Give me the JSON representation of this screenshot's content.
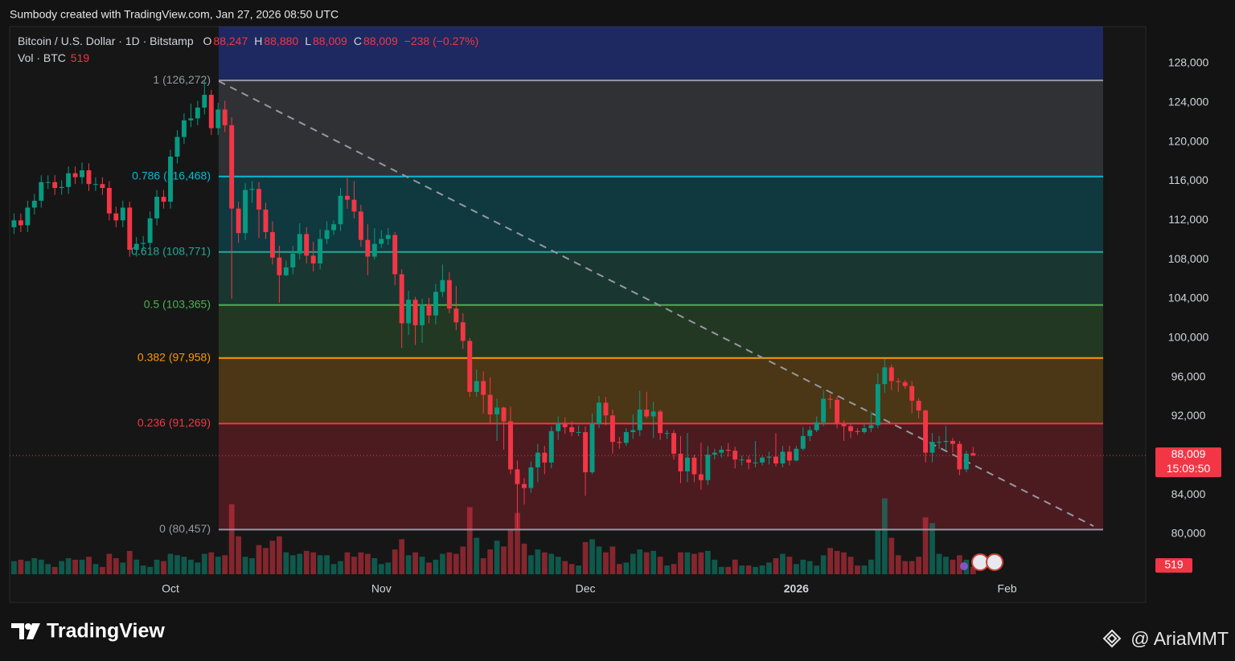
{
  "header": {
    "caption": "Sumbody created with TradingView.com, Jan 27, 2026 08:50 UTC"
  },
  "footer": {
    "brand": "TradingView",
    "author": "@ AriaMMT"
  },
  "chart_data": {
    "type": "candlestick",
    "title": "Bitcoin / U.S. Dollar · 1D · Bitstamp",
    "ohlc_legend": [
      {
        "key": "O",
        "value": "88,247"
      },
      {
        "key": "H",
        "value": "88,880"
      },
      {
        "key": "L",
        "value": "88,009"
      },
      {
        "key": "C",
        "value": "88,009"
      }
    ],
    "change": "−238 (−0.27%)",
    "volume_title": "Vol · BTC",
    "up_color": "#089981",
    "down_color": "#f23645",
    "ylim": [
      75900,
      131770
    ],
    "yticks": [
      {
        "value": 80000,
        "label": "80,000"
      },
      {
        "value": 84000,
        "label": "84,000"
      },
      {
        "value": 88000,
        "label": "88,000"
      },
      {
        "value": 92000,
        "label": "92,000"
      },
      {
        "value": 96000,
        "label": "96,000"
      },
      {
        "value": 100000,
        "label": "100,000"
      },
      {
        "value": 104000,
        "label": "104,000"
      },
      {
        "value": 108000,
        "label": "108,000"
      },
      {
        "value": 112000,
        "label": "112,000"
      },
      {
        "value": 116000,
        "label": "116,000"
      },
      {
        "value": 120000,
        "label": "120,000"
      },
      {
        "value": 124000,
        "label": "124,000"
      },
      {
        "value": 128000,
        "label": "128,000"
      }
    ],
    "volume_ylim": [
      0,
      5500
    ],
    "last_price": {
      "value": 88009,
      "label": "88,009"
    },
    "countdown": "15:09:50",
    "fib_levels": [
      {
        "value": 126272,
        "label": "1 (126,272)",
        "color": "#9598a1",
        "fill": "rgba(120,123,134,0.28)"
      },
      {
        "value": 116468,
        "label": "0.786 (116,468)",
        "color": "#00bcd4",
        "fill": "rgba(0,150,170,0.28)"
      },
      {
        "value": 108771,
        "label": "0.618 (108,771)",
        "color": "#26a69a",
        "fill": "rgba(38,140,120,0.28)"
      },
      {
        "value": 103365,
        "label": "0.5 (103,365)",
        "color": "#4caf50",
        "fill": "rgba(76,160,70,0.25)"
      },
      {
        "value": 97958,
        "label": "0.382 (97,958)",
        "color": "#ff9800",
        "fill": "rgba(200,130,20,0.3)"
      },
      {
        "value": 91269,
        "label": "0.236 (91,269)",
        "color": "#f23645",
        "fill": "rgba(200,40,55,0.3)"
      },
      {
        "value": 80457,
        "label": "0 (80,457)",
        "color": "#9598a1"
      }
    ],
    "categories": [
      null,
      null,
      null,
      null,
      null,
      null,
      null,
      null,
      null,
      null,
      null,
      null,
      null,
      null,
      null,
      null,
      null,
      null,
      null,
      null,
      null,
      null,
      null,
      "Oct",
      null,
      null,
      null,
      null,
      null,
      null,
      null,
      null,
      null,
      null,
      null,
      null,
      null,
      null,
      null,
      null,
      null,
      null,
      null,
      null,
      null,
      null,
      null,
      null,
      null,
      null,
      null,
      null,
      null,
      null,
      "Nov",
      null,
      null,
      null,
      null,
      null,
      null,
      null,
      null,
      null,
      null,
      null,
      null,
      null,
      null,
      null,
      null,
      null,
      null,
      null,
      null,
      null,
      null,
      null,
      null,
      null,
      null,
      null,
      null,
      null,
      "Dec",
      null,
      null,
      null,
      null,
      null,
      null,
      null,
      null,
      null,
      null,
      null,
      null,
      null,
      null,
      null,
      null,
      null,
      null,
      null,
      null,
      null,
      null,
      null,
      null,
      null,
      null,
      null,
      null,
      null,
      null,
      "2026",
      null,
      null,
      null,
      null,
      null,
      null,
      null,
      null,
      null,
      null,
      null,
      null,
      null,
      null,
      null,
      null,
      null,
      null,
      null,
      null,
      null,
      null,
      null,
      null,
      null,
      null,
      null,
      null,
      null,
      null,
      "Feb",
      null,
      null,
      null,
      null,
      null,
      null,
      null,
      null,
      null,
      null,
      null,
      null,
      null
    ],
    "open": [
      111300,
      112000,
      111500,
      113300,
      114000,
      115900,
      115900,
      115300,
      115400,
      116800,
      116400,
      117100,
      115700,
      115700,
      115300,
      112700,
      112000,
      113300,
      109000,
      109600,
      109700,
      112200,
      114400,
      113900,
      118500,
      120500,
      122200,
      122400,
      123500,
      124800,
      121400,
      123300,
      121700,
      113200,
      110700,
      115100,
      115200,
      113100,
      110800,
      108200,
      106400,
      107200,
      108600,
      110600,
      108400,
      107600,
      110100,
      111000,
      111600,
      114500,
      114100,
      112900,
      110000,
      108300,
      109600,
      110100,
      110500,
      106500,
      101500,
      103900,
      101300,
      103400,
      102300,
      104700,
      105900,
      103000,
      101600,
      99700,
      94500,
      95600,
      94200,
      92200,
      92900,
      91500,
      86600,
      85100,
      84700,
      86800,
      88300,
      87300,
      90500,
      91300,
      90900,
      90400,
      90400,
      86300,
      91300,
      93400,
      92100,
      89400,
      89300,
      90400,
      90600,
      92700,
      92000,
      92500,
      90300,
      90300,
      88200,
      86400,
      87800,
      86100,
      85500,
      88100,
      88300,
      88600,
      88500,
      87600,
      87600,
      87300,
      87300,
      87800,
      87900,
      87200,
      88400,
      87500,
      88700,
      90000,
      90600,
      91400,
      93800,
      93700,
      91300,
      91000,
      90500,
      90400,
      90800,
      91100,
      95300,
      97000,
      95600,
      95500,
      95100,
      93600,
      92600,
      88300,
      89400,
      89400,
      89500,
      89200,
      86600,
      88247,
      null,
      null,
      null,
      null,
      null,
      null,
      null,
      null,
      null,
      null,
      null,
      null,
      null,
      null,
      null,
      null,
      null,
      null
    ],
    "high": [
      112700,
      112700,
      114000,
      114700,
      116600,
      116600,
      116600,
      116100,
      117500,
      117500,
      117900,
      117800,
      116400,
      116400,
      116000,
      113400,
      114000,
      113900,
      110300,
      110400,
      112900,
      115100,
      115100,
      119200,
      121200,
      122900,
      123900,
      124200,
      126272,
      125300,
      124000,
      124200,
      122500,
      113900,
      115800,
      116000,
      115900,
      113800,
      111900,
      109400,
      107900,
      109400,
      111700,
      111300,
      109800,
      111100,
      111900,
      112000,
      115300,
      116400,
      116000,
      113600,
      111600,
      111200,
      111000,
      111200,
      110800,
      107000,
      104800,
      104200,
      104000,
      104100,
      105500,
      107500,
      106700,
      105300,
      102500,
      100000,
      96800,
      96600,
      96000,
      93800,
      93000,
      93000,
      87500,
      85700,
      87400,
      89200,
      89000,
      91000,
      92000,
      91900,
      91500,
      91100,
      91000,
      92300,
      94100,
      94000,
      92700,
      89900,
      90800,
      92200,
      94600,
      94500,
      93500,
      92700,
      90600,
      90600,
      90000,
      90300,
      88100,
      89300,
      89000,
      88700,
      89000,
      89300,
      88900,
      88000,
      88000,
      89500,
      88000,
      88400,
      90300,
      89000,
      89000,
      89000,
      90900,
      91000,
      92000,
      94700,
      94300,
      94000,
      91600,
      91200,
      90800,
      91200,
      92500,
      96400,
      97900,
      97300,
      95900,
      95700,
      95600,
      93900,
      92700,
      90300,
      90000,
      91000,
      89800,
      89500,
      88500,
      88880,
      null,
      null,
      null,
      null,
      null,
      null,
      null,
      null,
      null,
      null,
      null,
      null,
      null,
      null,
      null,
      null,
      null,
      null
    ],
    "low": [
      110600,
      110800,
      110800,
      112600,
      113300,
      115200,
      114600,
      114600,
      114700,
      115700,
      115700,
      115000,
      115000,
      114600,
      112000,
      111300,
      111300,
      108300,
      108300,
      108900,
      109000,
      111500,
      113200,
      113200,
      117800,
      119800,
      121500,
      121700,
      122800,
      120700,
      120700,
      121000,
      104000,
      109700,
      110000,
      113800,
      110200,
      110100,
      107500,
      103600,
      106300,
      106500,
      108000,
      107600,
      106800,
      107000,
      109600,
      110500,
      110900,
      113200,
      112200,
      109300,
      106400,
      108000,
      109200,
      109500,
      105400,
      99000,
      100300,
      99300,
      99500,
      101500,
      101400,
      104200,
      102500,
      100800,
      98900,
      94000,
      94000,
      92300,
      91200,
      89500,
      88600,
      86100,
      80457,
      83000,
      84200,
      85300,
      86100,
      86700,
      89600,
      90200,
      90000,
      90000,
      83900,
      86100,
      90800,
      91100,
      88200,
      88700,
      89000,
      89700,
      90000,
      91800,
      89800,
      89600,
      89700,
      87600,
      85200,
      85300,
      85300,
      84500,
      85000,
      87600,
      87800,
      87900,
      86700,
      87000,
      86600,
      86800,
      87000,
      87100,
      86900,
      86800,
      87000,
      87400,
      88500,
      89500,
      90400,
      91000,
      92800,
      90800,
      89500,
      89800,
      90100,
      90200,
      90400,
      90800,
      94400,
      94700,
      94500,
      94800,
      92300,
      91800,
      87300,
      87300,
      88700,
      88500,
      88300,
      86000,
      86300,
      88009,
      null,
      null,
      null,
      null,
      null,
      null,
      null,
      null,
      null,
      null,
      null,
      null,
      null,
      null,
      null,
      null,
      null,
      null
    ],
    "close": [
      112000,
      111500,
      113300,
      114000,
      115900,
      115900,
      115300,
      115400,
      116800,
      116400,
      117100,
      115700,
      115700,
      115300,
      112700,
      112000,
      113300,
      109000,
      109600,
      109700,
      112200,
      114400,
      113900,
      118500,
      120500,
      122200,
      122400,
      123500,
      124800,
      121400,
      123300,
      121700,
      113200,
      110700,
      115100,
      115200,
      113100,
      110800,
      108200,
      106400,
      107200,
      108600,
      110600,
      108400,
      107600,
      110100,
      111000,
      111600,
      114500,
      114100,
      112900,
      110000,
      108300,
      109600,
      110100,
      110500,
      106500,
      101500,
      103900,
      101300,
      103400,
      102300,
      104700,
      105900,
      103000,
      101600,
      99700,
      94500,
      95600,
      94200,
      92200,
      92900,
      91500,
      86600,
      85100,
      84700,
      86800,
      88300,
      87300,
      90500,
      91300,
      90900,
      90400,
      90400,
      86300,
      91300,
      93400,
      92100,
      89400,
      89300,
      90400,
      90600,
      92700,
      92000,
      92500,
      90300,
      90300,
      88200,
      86400,
      87800,
      86100,
      85500,
      88100,
      88300,
      88600,
      88500,
      87600,
      87600,
      87300,
      87300,
      87800,
      87900,
      87200,
      88400,
      87500,
      88700,
      90000,
      90600,
      91400,
      93800,
      93700,
      91300,
      91000,
      90500,
      90400,
      90800,
      91100,
      95300,
      97000,
      95600,
      95500,
      95100,
      93600,
      92600,
      88300,
      89400,
      89400,
      89500,
      89200,
      86600,
      88200,
      88009,
      null,
      null,
      null,
      null,
      null,
      null,
      null,
      null,
      null,
      null,
      null,
      null,
      null,
      null,
      null,
      null,
      null,
      null
    ],
    "volume": [
      900,
      1000,
      900,
      1100,
      1000,
      700,
      500,
      900,
      1100,
      1000,
      1000,
      1200,
      700,
      500,
      1400,
      1100,
      800,
      1600,
      1000,
      600,
      500,
      1000,
      900,
      1400,
      1300,
      1200,
      1000,
      800,
      1400,
      1500,
      1200,
      1300,
      4800,
      2600,
      1200,
      1100,
      2000,
      1800,
      2300,
      2600,
      1500,
      1300,
      1400,
      1600,
      1500,
      1300,
      1300,
      700,
      900,
      1500,
      1200,
      1500,
      1400,
      1100,
      700,
      800,
      1700,
      2400,
      1300,
      1500,
      1200,
      800,
      1000,
      1400,
      1500,
      1400,
      1900,
      4600,
      2500,
      1100,
      1700,
      2300,
      1900,
      3100,
      4200,
      2100,
      1300,
      1700,
      1500,
      1400,
      1200,
      900,
      700,
      600,
      2200,
      2400,
      1900,
      1500,
      1900,
      700,
      800,
      1400,
      1700,
      1500,
      1600,
      1200,
      600,
      700,
      1500,
      1500,
      1400,
      1500,
      1600,
      1000,
      500,
      500,
      1000,
      600,
      600,
      500,
      600,
      800,
      1100,
      1400,
      1200,
      700,
      1000,
      900,
      600,
      1300,
      1800,
      1600,
      1500,
      1200,
      600,
      600,
      1000,
      3000,
      5200,
      2500,
      1300,
      900,
      900,
      1200,
      3900,
      3500,
      1400,
      1200,
      1000,
      1300,
      1000,
      519,
      null,
      null,
      null,
      null,
      null,
      null,
      null,
      null,
      null,
      null,
      null,
      null,
      null,
      null,
      null,
      null,
      null,
      null
    ]
  }
}
